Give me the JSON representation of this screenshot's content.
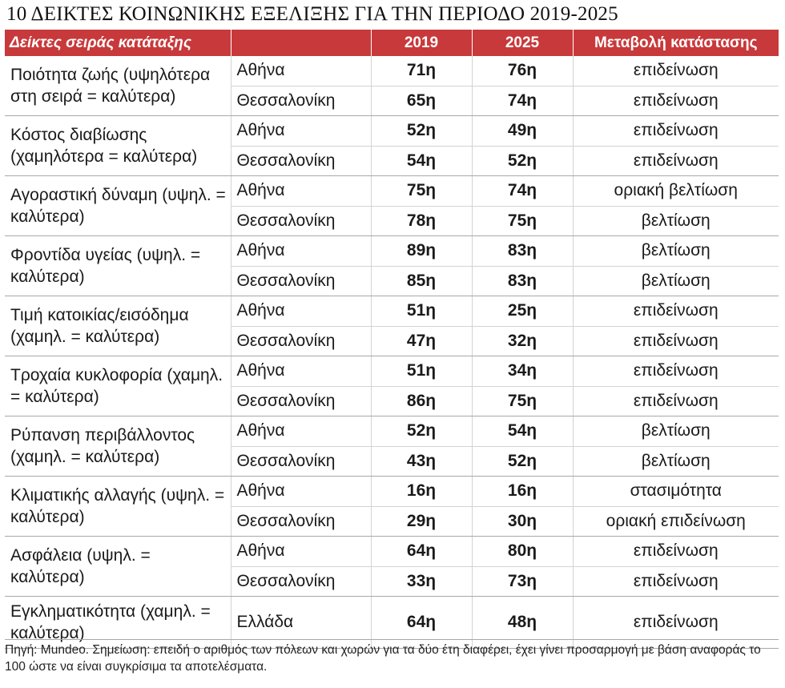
{
  "title": "10 ΔΕΙΚΤΕΣ ΚΟΙΝΩΝΙΚΗΣ ΕΞΕΛΙΞΗΣ ΓΙΑ ΤΗΝ ΠΕΡΙΟΔΟ 2019-2025",
  "header": {
    "indicator": "Δείκτες σειράς κατάταξης",
    "city": "",
    "y2019": "2019",
    "y2025": "2025",
    "change": "Μεταβολή κατάστασης"
  },
  "colors": {
    "header_bg": "#c8393b",
    "header_text": "#ffffff"
  },
  "footer": "Πηγή: Mundeo. Σημείωση: επειδή ο αριθμός των πόλεων και χωρών για τα δύο έτη διαφέρει, έχει γίνει προσαρμογή με βάση αναφοράς το 100 ώστε να είναι συγκρίσιμα τα αποτελέσματα.",
  "chart_data": {
    "type": "table",
    "title": "10 ΔΕΙΚΤΕΣ ΚΟΙΝΩΝΙΚΗΣ ΕΞΕΛΙΞΗΣ ΓΙΑ ΤΗΝ ΠΕΡΙΟΔΟ 2019-2025",
    "columns": [
      "Δείκτες σειράς κατάταξης",
      "",
      "2019",
      "2025",
      "Μεταβολή κατάστασης"
    ],
    "rows": [
      {
        "indicator": "Ποιότητα ζωής (υψηλότερα στη σειρά = καλύτερα)",
        "entries": [
          {
            "city": "Αθήνα",
            "y2019": "71η",
            "y2025": "76η",
            "change": "επιδείνωση"
          },
          {
            "city": "Θεσσαλονίκη",
            "y2019": "65η",
            "y2025": "74η",
            "change": "επιδείνωση"
          }
        ]
      },
      {
        "indicator": "Κόστος διαβίωσης (χαμηλότερα = καλύτερα)",
        "entries": [
          {
            "city": "Αθήνα",
            "y2019": "52η",
            "y2025": "49η",
            "change": "επιδείνωση"
          },
          {
            "city": "Θεσσαλονίκη",
            "y2019": "54η",
            "y2025": "52η",
            "change": "επιδείνωση"
          }
        ]
      },
      {
        "indicator": "Αγοραστική δύναμη (υψηλ. = καλύτερα)",
        "entries": [
          {
            "city": "Αθήνα",
            "y2019": "75η",
            "y2025": "74η",
            "change": "οριακή βελτίωση"
          },
          {
            "city": "Θεσσαλονίκη",
            "y2019": "78η",
            "y2025": "75η",
            "change": "βελτίωση"
          }
        ]
      },
      {
        "indicator": "Φροντίδα υγείας (υψηλ. = καλύτερα)",
        "entries": [
          {
            "city": "Αθήνα",
            "y2019": "89η",
            "y2025": "83η",
            "change": "βελτίωση"
          },
          {
            "city": "Θεσσαλονίκη",
            "y2019": "85η",
            "y2025": "83η",
            "change": "βελτίωση"
          }
        ]
      },
      {
        "indicator": "Τιμή κατοικίας/εισόδημα (χαμηλ. = καλύτερα)",
        "entries": [
          {
            "city": "Αθήνα",
            "y2019": "51η",
            "y2025": "25η",
            "change": "επιδείνωση"
          },
          {
            "city": "Θεσσαλονίκη",
            "y2019": "47η",
            "y2025": "32η",
            "change": "επιδείνωση"
          }
        ]
      },
      {
        "indicator": "Τροχαία κυκλοφορία (χαμηλ. = καλύτερα)",
        "entries": [
          {
            "city": "Αθήνα",
            "y2019": "51η",
            "y2025": "34η",
            "change": "επιδείνωση"
          },
          {
            "city": "Θεσσαλονίκη",
            "y2019": "86η",
            "y2025": "75η",
            "change": "επιδείνωση"
          }
        ]
      },
      {
        "indicator": "Ρύπανση περιβάλλοντος (χαμηλ. = καλύτερα)",
        "entries": [
          {
            "city": "Αθήνα",
            "y2019": "52η",
            "y2025": "54η",
            "change": "βελτίωση"
          },
          {
            "city": "Θεσσαλονίκη",
            "y2019": "43η",
            "y2025": "52η",
            "change": "βελτίωση"
          }
        ]
      },
      {
        "indicator": "Κλιματικής αλλαγής (υψηλ. = καλύτερα)",
        "entries": [
          {
            "city": "Αθήνα",
            "y2019": "16η",
            "y2025": "16η",
            "change": "στασιμότητα"
          },
          {
            "city": "Θεσσαλονίκη",
            "y2019": "29η",
            "y2025": "30η",
            "change": "οριακή επιδείνωση"
          }
        ]
      },
      {
        "indicator": "Ασφάλεια (υψηλ. = καλύτερα)",
        "entries": [
          {
            "city": "Αθήνα",
            "y2019": "64η",
            "y2025": "80η",
            "change": "επιδείνωση"
          },
          {
            "city": "Θεσσαλονίκη",
            "y2019": "33η",
            "y2025": "73η",
            "change": "επιδείνωση"
          }
        ]
      },
      {
        "indicator": "Εγκληματικότητα (χαμηλ. = καλύτερα)",
        "entries": [
          {
            "city": "Ελλάδα",
            "y2019": "64η",
            "y2025": "48η",
            "change": "επιδείνωση"
          }
        ]
      }
    ]
  }
}
